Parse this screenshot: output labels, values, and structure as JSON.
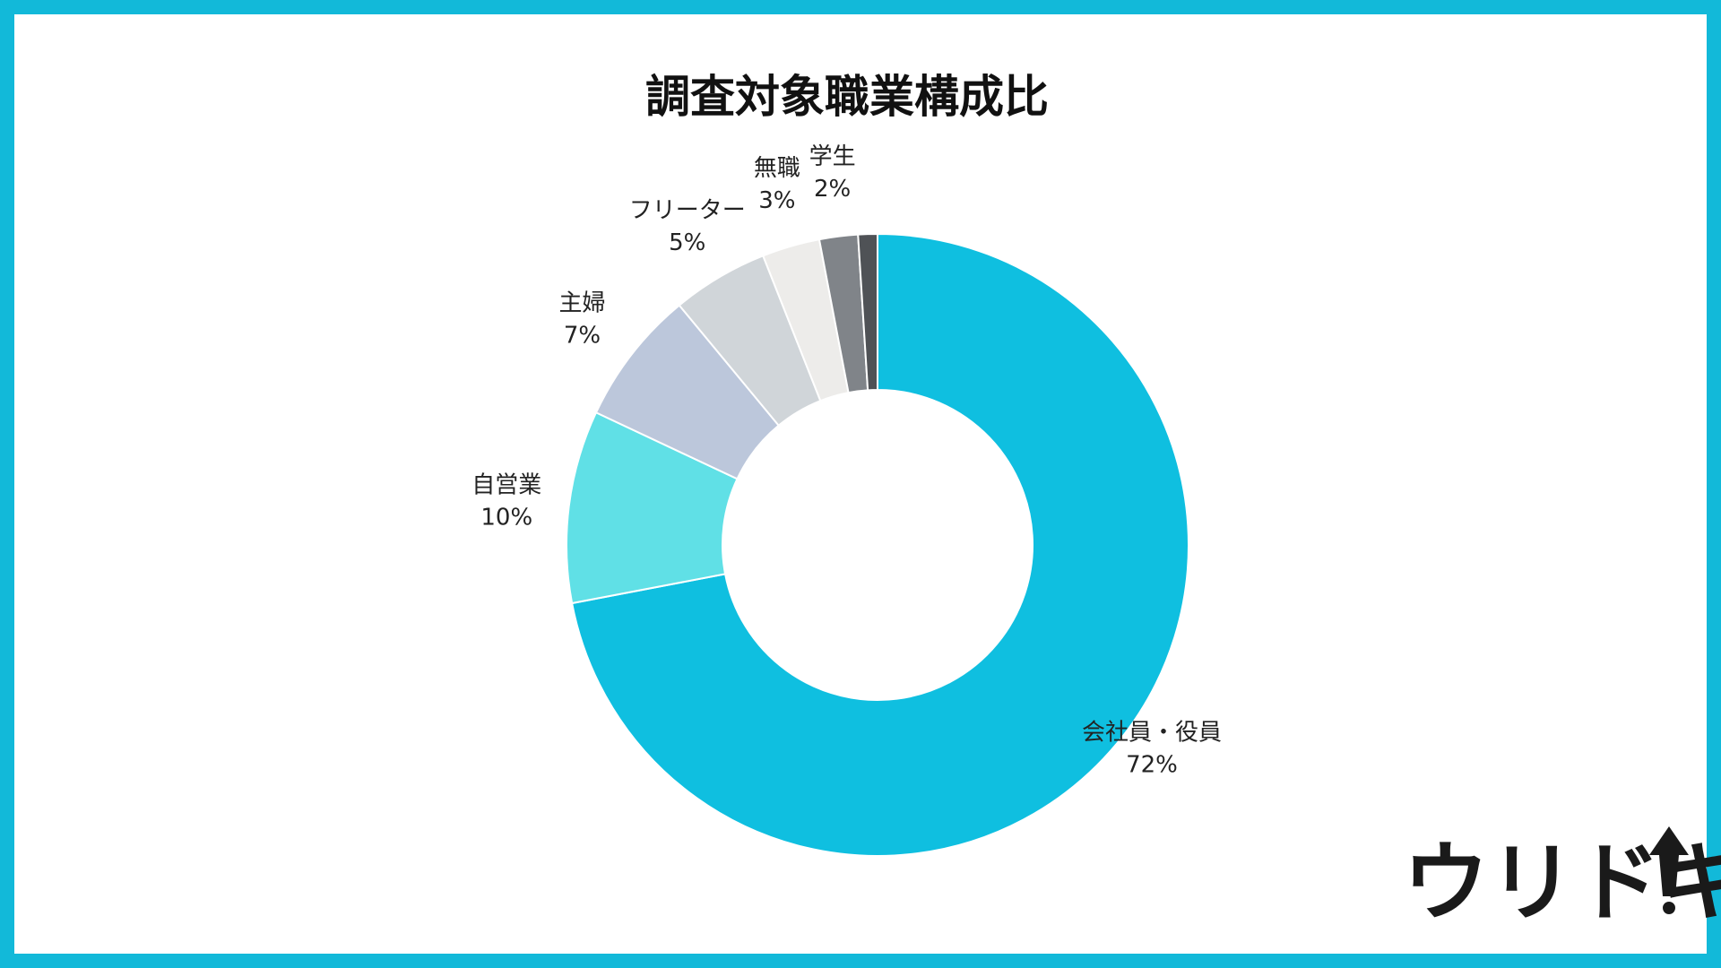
{
  "chart_data": {
    "type": "pie",
    "donut": true,
    "title": "調査対象職業構成比",
    "start": "12 o'clock, clockwise",
    "slices": [
      {
        "name": "会社員・役員",
        "value": 72,
        "label": "72%",
        "color": "#0fbfe0"
      },
      {
        "name": "自営業",
        "value": 10,
        "label": "10%",
        "color": "#60e0e6"
      },
      {
        "name": "主婦",
        "value": 7,
        "label": "7%",
        "color": "#bcc7db"
      },
      {
        "name": "フリーター",
        "value": 5,
        "label": "5%",
        "color": "#d0d5d9"
      },
      {
        "name": "無職",
        "value": 3,
        "label": "3%",
        "color": "#edecea"
      },
      {
        "name": "学生",
        "value": 2,
        "label": "2%",
        "color": "#808489"
      },
      {
        "name": "",
        "value": 1,
        "label": "",
        "color": "#4f5256"
      }
    ]
  },
  "brand": {
    "logo_text": "ウリドキ",
    "frame_color": "#12b9d9"
  }
}
